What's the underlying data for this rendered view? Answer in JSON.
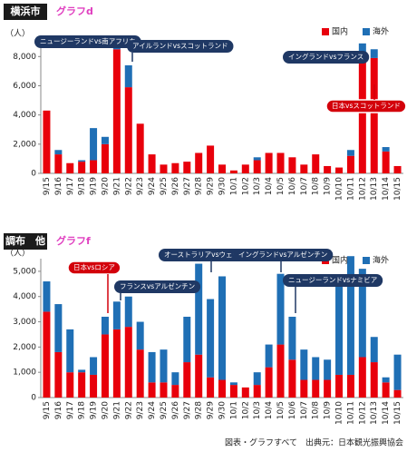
{
  "chart_data": [
    {
      "type": "bar",
      "stacked": true,
      "region": "横浜市",
      "title": "グラフd",
      "y_unit": "（人）",
      "categories": [
        "9/15",
        "9/16",
        "9/17",
        "9/18",
        "9/19",
        "9/20",
        "9/21",
        "9/22",
        "9/23",
        "9/24",
        "9/25",
        "9/26",
        "9/27",
        "9/28",
        "9/29",
        "9/30",
        "10/1",
        "10/2",
        "10/3",
        "10/4",
        "10/5",
        "10/6",
        "10/7",
        "10/8",
        "10/9",
        "10/10",
        "10/11",
        "10/12",
        "10/13",
        "10/14",
        "10/15"
      ],
      "series": [
        {
          "name": "国内",
          "color": "#e8000b",
          "values": [
            4300,
            1300,
            700,
            800,
            900,
            2000,
            8500,
            5900,
            3400,
            1300,
            600,
            700,
            800,
            1400,
            1900,
            600,
            200,
            600,
            900,
            1400,
            1400,
            1100,
            600,
            1300,
            500,
            400,
            1200,
            7900,
            7900,
            1500,
            500
          ]
        },
        {
          "name": "海外",
          "color": "#1f6fb5",
          "values": [
            0,
            300,
            0,
            100,
            2200,
            500,
            600,
            1500,
            0,
            0,
            0,
            0,
            0,
            0,
            0,
            0,
            0,
            0,
            200,
            0,
            0,
            0,
            0,
            0,
            0,
            0,
            400,
            1000,
            600,
            300,
            0
          ]
        }
      ],
      "ylim": [
        0,
        9200
      ],
      "yticks": [
        0,
        {
          "value": 2000,
          "label": "2,000"
        },
        {
          "value": 4000,
          "label": "4,000"
        },
        {
          "value": 6000,
          "label": "6,000"
        },
        {
          "value": 8000,
          "label": "8,000"
        }
      ],
      "grid": false,
      "annotations": [
        "ニュージーランドvs南アフリカ",
        "アイルランドvsスコットランド",
        "イングランドvsフランス",
        "日本vsスコットランド"
      ]
    },
    {
      "type": "bar",
      "stacked": true,
      "region": "調布　他",
      "title": "グラフf",
      "y_unit": "（人）",
      "categories": [
        "9/15",
        "9/16",
        "9/17",
        "9/18",
        "9/19",
        "9/20",
        "9/21",
        "9/22",
        "9/23",
        "9/24",
        "9/25",
        "9/26",
        "9/27",
        "9/28",
        "9/29",
        "9/30",
        "10/1",
        "10/2",
        "10/3",
        "10/4",
        "10/5",
        "10/6",
        "10/7",
        "10/8",
        "10/9",
        "10/10",
        "10/11",
        "10/12",
        "10/13",
        "10/14",
        "10/15"
      ],
      "series": [
        {
          "name": "国内",
          "color": "#e8000b",
          "values": [
            3400,
            1800,
            1000,
            1000,
            900,
            2500,
            2700,
            2800,
            1900,
            600,
            600,
            500,
            1400,
            1700,
            800,
            700,
            500,
            400,
            500,
            1200,
            2100,
            1500,
            700,
            700,
            700,
            900,
            900,
            1600,
            1400,
            600,
            300
          ]
        },
        {
          "name": "海外",
          "color": "#1f6fb5",
          "values": [
            1200,
            1900,
            1700,
            100,
            700,
            700,
            1100,
            1200,
            1100,
            1200,
            1300,
            500,
            1800,
            3600,
            3100,
            4100,
            100,
            0,
            500,
            900,
            2800,
            1700,
            1200,
            900,
            800,
            3900,
            4700,
            3500,
            1000,
            200,
            1400
          ]
        }
      ],
      "ylim": [
        0,
        5500
      ],
      "yticks": [
        0,
        {
          "value": 1000,
          "label": "1,000"
        },
        {
          "value": 2000,
          "label": "2,000"
        },
        {
          "value": 3000,
          "label": "3,000"
        },
        {
          "value": 4000,
          "label": "4,000"
        },
        {
          "value": 5000,
          "label": "5,000"
        }
      ],
      "grid": false,
      "annotations": [
        "日本vsロシア",
        "フランスvsアルゼンチン",
        "オーストラリアvsウェールズ",
        "イングランドvsアルゼンチン",
        "ニュージーランドvsナミビア"
      ]
    }
  ],
  "footer": "図表・グラフすべて　出典元：日本観光振興協会"
}
